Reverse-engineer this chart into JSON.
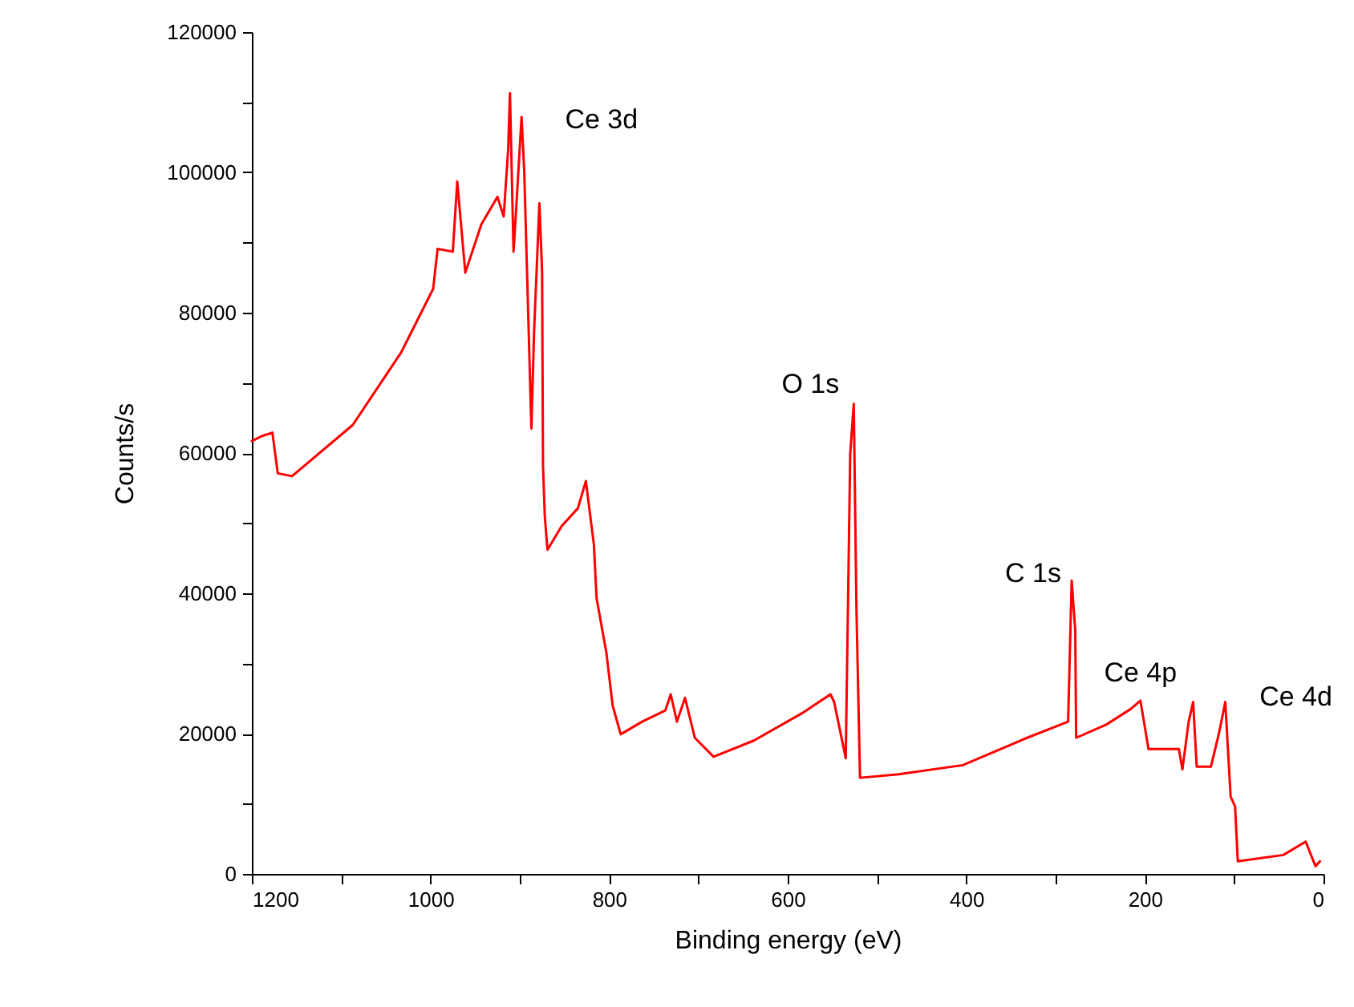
{
  "chart_data": {
    "type": "line",
    "xlabel": "Binding energy (eV)",
    "ylabel": "Counts/s",
    "x": [
      1200,
      1189,
      1177,
      1171,
      1155,
      1087,
      1033,
      997,
      992,
      975,
      970,
      961,
      943,
      925,
      918,
      913,
      911,
      907,
      904,
      898,
      895,
      891,
      887,
      884,
      878,
      875,
      874,
      872,
      869,
      853,
      835,
      826,
      817,
      814,
      803,
      796,
      787,
      763,
      737,
      731,
      724,
      715,
      704,
      683,
      638,
      584,
      552,
      548,
      535,
      530,
      526,
      523,
      519,
      476,
      404,
      332,
      286,
      282,
      278,
      277,
      243,
      216,
      205,
      196,
      162,
      158,
      151,
      146,
      142,
      126,
      117,
      110,
      104,
      99,
      96,
      45,
      20,
      9,
      4
    ],
    "series": [
      {
        "color": "#ff0000",
        "values": [
          61700,
          62400,
          62900,
          57100,
          56700,
          64000,
          74300,
          83400,
          89100,
          88700,
          98700,
          85700,
          92600,
          96500,
          93700,
          103300,
          111300,
          88700,
          94900,
          107900,
          100100,
          81800,
          63500,
          77300,
          95600,
          85700,
          58300,
          51000,
          46200,
          49600,
          52100,
          56000,
          46900,
          39300,
          31500,
          24000,
          19900,
          21700,
          23300,
          25600,
          21700,
          25100,
          19400,
          16700,
          19000,
          22900,
          25600,
          24500,
          16500,
          59900,
          67000,
          37700,
          13700,
          14200,
          15500,
          19400,
          21700,
          41800,
          34700,
          19400,
          21300,
          23500,
          24700,
          17800,
          17800,
          14900,
          21700,
          24500,
          15300,
          15300,
          20100,
          24500,
          11000,
          9600,
          1800,
          2700,
          4600,
          1100,
          1800
        ]
      }
    ],
    "xlim": [
      1200,
      0
    ],
    "xticks": [
      1200,
      {
        "value": 1100,
        "label": null
      },
      1000,
      {
        "value": 900,
        "label": null
      },
      800,
      {
        "value": 700,
        "label": null
      },
      600,
      {
        "value": 500,
        "label": null
      },
      400,
      {
        "value": 300,
        "label": null
      },
      200,
      {
        "value": 100,
        "label": null
      },
      0
    ],
    "ylim": [
      0,
      120000
    ],
    "yticks": [
      0,
      {
        "value": 10000,
        "label": null
      },
      20000,
      {
        "value": 30000,
        "label": null
      },
      40000,
      {
        "value": 50000,
        "label": null
      },
      60000,
      {
        "value": 70000,
        "label": null
      },
      80000,
      {
        "value": 90000,
        "label": null
      },
      100000,
      {
        "value": 110000,
        "label": null
      },
      120000
    ],
    "grid": false,
    "line_style": "solid",
    "marker": "none",
    "annotations": [
      {
        "text": "Ce 3d",
        "x": 911,
        "y": 111300
      },
      {
        "text": "O 1s",
        "x": 526,
        "y": 67000
      },
      {
        "text": "C 1s",
        "x": 282,
        "y": 41800
      },
      {
        "text": "Ce 4p",
        "x": 205,
        "y": 24700
      },
      {
        "text": "Ce 4d",
        "x": 110,
        "y": 24500
      }
    ]
  }
}
